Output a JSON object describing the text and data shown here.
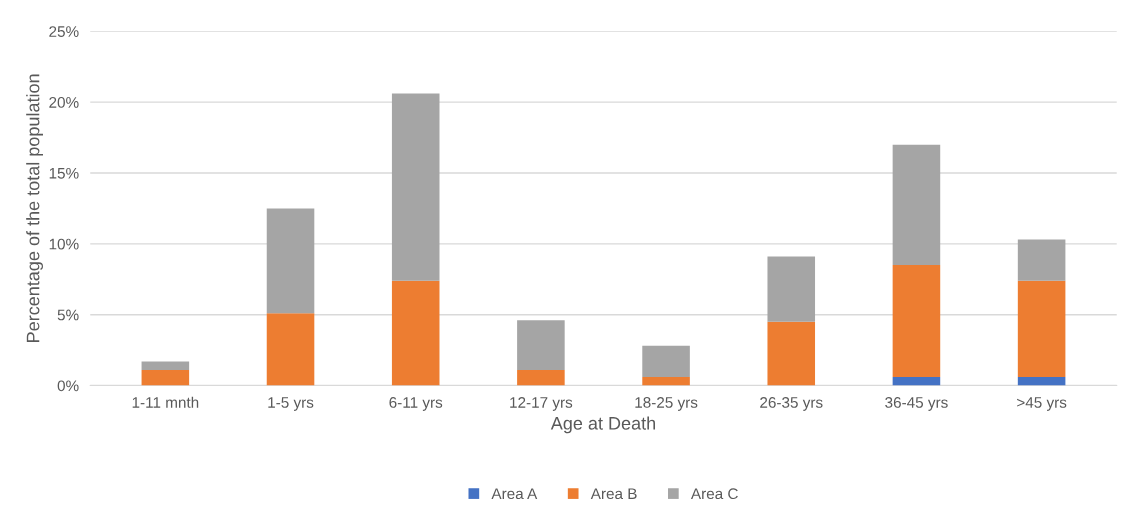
{
  "chart_data": {
    "type": "bar",
    "stacked": true,
    "xlabel": "Age at Death",
    "ylabel": "Percentage of the total population",
    "categories": [
      "1-11 mnth",
      "1-5 yrs",
      "6-11 yrs",
      "12-17 yrs",
      "18-25 yrs",
      "26-35 yrs",
      "36-45 yrs",
      ">45 yrs"
    ],
    "series": [
      {
        "name": "Area A",
        "color": "#4472c4",
        "values": [
          0,
          0,
          0,
          0,
          0,
          0,
          0.6,
          0.6
        ]
      },
      {
        "name": "Area B",
        "color": "#ed7d31",
        "values": [
          1.1,
          5.1,
          7.4,
          1.1,
          0.6,
          4.5,
          7.9,
          6.8
        ]
      },
      {
        "name": "Area C",
        "color": "#a5a5a5",
        "values": [
          0.6,
          7.4,
          13.2,
          3.5,
          2.2,
          4.6,
          8.5,
          2.9
        ]
      }
    ],
    "ylim": [
      0,
      25
    ],
    "yticks": [
      {
        "value": 0,
        "label": "0%"
      },
      {
        "value": 5,
        "label": "5%"
      },
      {
        "value": 10,
        "label": "10%"
      },
      {
        "value": 15,
        "label": "15%"
      },
      {
        "value": 20,
        "label": "20%"
      },
      {
        "value": 25,
        "label": "25%"
      }
    ],
    "grid": "y",
    "legend": "bottom"
  }
}
